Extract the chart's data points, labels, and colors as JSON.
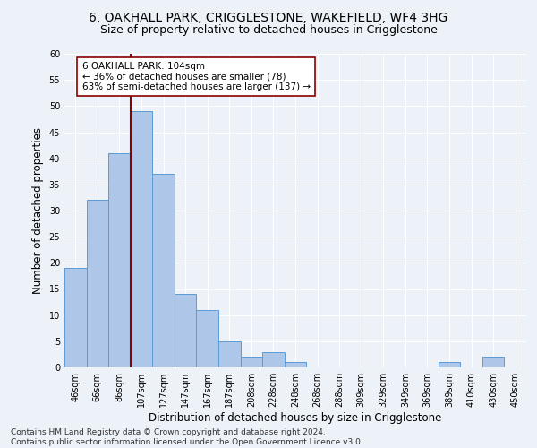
{
  "title_line1": "6, OAKHALL PARK, CRIGGLESTONE, WAKEFIELD, WF4 3HG",
  "title_line2": "Size of property relative to detached houses in Crigglestone",
  "xlabel": "Distribution of detached houses by size in Crigglestone",
  "ylabel": "Number of detached properties",
  "footnote": "Contains HM Land Registry data © Crown copyright and database right 2024.\nContains public sector information licensed under the Open Government Licence v3.0.",
  "bar_labels": [
    "46sqm",
    "66sqm",
    "86sqm",
    "107sqm",
    "127sqm",
    "147sqm",
    "167sqm",
    "187sqm",
    "208sqm",
    "228sqm",
    "248sqm",
    "268sqm",
    "288sqm",
    "309sqm",
    "329sqm",
    "349sqm",
    "369sqm",
    "389sqm",
    "410sqm",
    "430sqm",
    "450sqm"
  ],
  "bar_values": [
    19,
    32,
    41,
    49,
    37,
    14,
    11,
    5,
    2,
    3,
    1,
    0,
    0,
    0,
    0,
    0,
    0,
    1,
    0,
    2,
    0
  ],
  "bar_color": "#aec6e8",
  "bar_edge_color": "#5b9bd5",
  "vline_x_idx": 3,
  "vline_color": "#8b0000",
  "annotation_text": "6 OAKHALL PARK: 104sqm\n← 36% of detached houses are smaller (78)\n63% of semi-detached houses are larger (137) →",
  "annotation_box_color": "white",
  "annotation_box_edge": "#8b0000",
  "ylim": [
    0,
    60
  ],
  "yticks": [
    0,
    5,
    10,
    15,
    20,
    25,
    30,
    35,
    40,
    45,
    50,
    55,
    60
  ],
  "bg_color": "#edf1f8",
  "grid_color": "white",
  "title_fontsize": 10,
  "subtitle_fontsize": 9,
  "axis_label_fontsize": 8.5,
  "tick_fontsize": 7,
  "footnote_fontsize": 6.5,
  "annotation_fontsize": 7.5
}
